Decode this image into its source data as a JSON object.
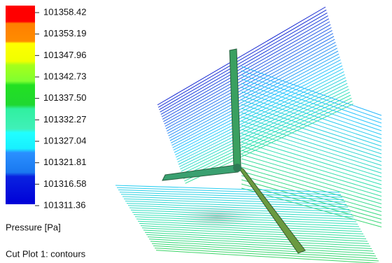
{
  "legend": {
    "labels": [
      "101358.42",
      "101353.19",
      "101347.96",
      "101342.73",
      "101337.50",
      "101332.27",
      "101327.04",
      "101321.81",
      "101316.58",
      "101311.36"
    ],
    "quantity": "Pressure [Pa]",
    "plot_name": "Cut Plot 1: contours"
  }
}
